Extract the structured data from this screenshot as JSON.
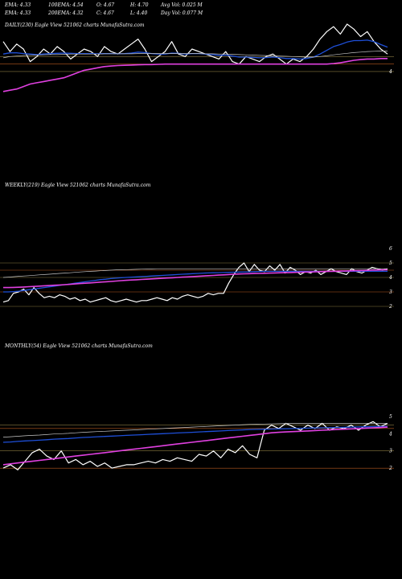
{
  "header": {
    "row1": [
      "EMA: 4.33",
      "100EMA: 4.54",
      "O: 4.67",
      "H: 4.70",
      "Avg Vol: 0.025 M"
    ],
    "row2": [
      "EMA: 4.33",
      "200EMA: 4.32",
      "C: 4.67",
      "L: 4.40",
      "Day Vol: 0.077 M"
    ]
  },
  "colors": {
    "background": "#000000",
    "price": "#ffffff",
    "ema_blue": "#1e4fd8",
    "ema_pink": "#e040e0",
    "ema_grey": "#c8c8c8",
    "ema_olive": "#8a7a40",
    "ref_line": "#b85a20"
  },
  "chart_data": [
    {
      "type": "line",
      "title": "DAILY(230) Eagle  View  521062  charts MunafaSutra.com",
      "y_ticks": [
        "4"
      ],
      "series": [
        {
          "values": [
            5.2,
            4.8,
            5.1,
            4.9,
            4.4,
            4.6,
            4.9,
            4.7,
            5.0,
            4.8,
            4.5,
            4.7,
            4.9,
            4.8,
            4.6,
            5.0,
            4.8,
            4.7,
            4.9,
            5.1,
            5.3,
            4.9,
            4.4,
            4.6,
            4.8,
            5.2,
            4.7,
            4.6,
            4.9,
            4.8,
            4.7,
            4.6,
            4.5,
            4.8,
            4.4,
            4.3,
            4.6,
            4.5,
            4.4,
            4.6,
            4.7,
            4.5,
            4.3,
            4.5,
            4.4,
            4.6,
            4.9,
            5.3,
            5.6,
            5.8,
            5.5,
            5.9,
            5.7,
            5.4,
            5.6,
            5.2,
            4.9,
            4.7
          ]
        },
        {
          "values": [
            4.7,
            4.75,
            4.75,
            4.72,
            4.7,
            4.68,
            4.7,
            4.72,
            4.73,
            4.74,
            4.73,
            4.72,
            4.72,
            4.72,
            4.71,
            4.72,
            4.72,
            4.71,
            4.72,
            4.74,
            4.78,
            4.76,
            4.72,
            4.7,
            4.7,
            4.74,
            4.73,
            4.7,
            4.72,
            4.72,
            4.7,
            4.68,
            4.65,
            4.66,
            4.62,
            4.58,
            4.58,
            4.57,
            4.55,
            4.56,
            4.58,
            4.56,
            4.52,
            4.52,
            4.5,
            4.52,
            4.58,
            4.7,
            4.85,
            5.0,
            5.08,
            5.18,
            5.24,
            5.24,
            5.26,
            5.2,
            5.08,
            4.98
          ]
        },
        {
          "values": [
            3.2,
            3.25,
            3.3,
            3.4,
            3.5,
            3.55,
            3.6,
            3.65,
            3.7,
            3.75,
            3.85,
            3.95,
            4.05,
            4.1,
            4.15,
            4.2,
            4.22,
            4.24,
            4.25,
            4.26,
            4.27,
            4.28,
            4.28,
            4.29,
            4.3,
            4.3,
            4.3,
            4.3,
            4.3,
            4.3,
            4.3,
            4.3,
            4.3,
            4.3,
            4.3,
            4.3,
            4.3,
            4.3,
            4.3,
            4.3,
            4.3,
            4.3,
            4.3,
            4.3,
            4.3,
            4.3,
            4.3,
            4.3,
            4.3,
            4.32,
            4.35,
            4.4,
            4.45,
            4.48,
            4.5,
            4.5,
            4.52,
            4.52
          ]
        },
        {
          "values": [
            4.55,
            4.6,
            4.62,
            4.64,
            4.65,
            4.66,
            4.67,
            4.68,
            4.68,
            4.69,
            4.7,
            4.7,
            4.7,
            4.7,
            4.7,
            4.71,
            4.71,
            4.71,
            4.71,
            4.71,
            4.72,
            4.72,
            4.72,
            4.72,
            4.72,
            4.72,
            4.72,
            4.72,
            4.72,
            4.72,
            4.71,
            4.71,
            4.7,
            4.7,
            4.69,
            4.68,
            4.67,
            4.66,
            4.65,
            4.64,
            4.63,
            4.62,
            4.61,
            4.6,
            4.59,
            4.58,
            4.58,
            4.6,
            4.63,
            4.67,
            4.7,
            4.73,
            4.76,
            4.78,
            4.8,
            4.81,
            4.82,
            4.82
          ]
        }
      ]
    },
    {
      "type": "line",
      "title": "WEEKLY(219) Eagle  View  521062  charts MunafaSutra.com",
      "y_ticks": [
        "6",
        "5",
        "4",
        "3",
        "2"
      ],
      "ylim": [
        1.5,
        6.5
      ],
      "series": [
        {
          "values": [
            2.3,
            2.4,
            2.9,
            3.0,
            3.2,
            2.8,
            3.3,
            2.9,
            2.6,
            2.7,
            2.6,
            2.8,
            2.7,
            2.5,
            2.6,
            2.4,
            2.5,
            2.3,
            2.4,
            2.5,
            2.6,
            2.4,
            2.3,
            2.4,
            2.5,
            2.4,
            2.3,
            2.4,
            2.4,
            2.5,
            2.6,
            2.5,
            2.4,
            2.6,
            2.5,
            2.7,
            2.8,
            2.7,
            2.6,
            2.7,
            2.9,
            2.8,
            2.9,
            2.9,
            3.6,
            4.2,
            4.7,
            5.0,
            4.4,
            4.9,
            4.5,
            4.4,
            4.8,
            4.5,
            4.9,
            4.3,
            4.7,
            4.5,
            4.2,
            4.4,
            4.3,
            4.5,
            4.2,
            4.4,
            4.6,
            4.4,
            4.3,
            4.2,
            4.6,
            4.4,
            4.3,
            4.5,
            4.7,
            4.6,
            4.5,
            4.6
          ]
        },
        {
          "values": [
            3.0,
            3.0,
            3.02,
            3.05,
            3.1,
            3.15,
            3.2,
            3.25,
            3.3,
            3.35,
            3.4,
            3.45,
            3.5,
            3.55,
            3.6,
            3.65,
            3.7,
            3.75,
            3.8,
            3.85,
            3.88,
            3.92,
            3.95,
            3.98,
            4.0,
            4.02,
            4.04,
            4.06,
            4.08,
            4.1,
            4.12,
            4.14,
            4.16,
            4.18,
            4.2,
            4.22,
            4.24,
            4.26,
            4.28,
            4.3,
            4.31,
            4.32,
            4.33,
            4.34,
            4.35,
            4.36,
            4.37,
            4.38,
            4.39,
            4.4,
            4.41,
            4.42,
            4.42,
            4.42,
            4.42,
            4.42,
            4.42,
            4.42,
            4.42,
            4.42,
            4.42,
            4.42,
            4.42,
            4.42,
            4.42,
            4.42,
            4.42,
            4.42,
            4.42,
            4.42,
            4.42,
            4.42,
            4.42,
            4.42,
            4.42,
            4.42
          ]
        },
        {
          "values": [
            3.3,
            3.3,
            3.31,
            3.32,
            3.34,
            3.36,
            3.38,
            3.4,
            3.42,
            3.44,
            3.46,
            3.48,
            3.5,
            3.52,
            3.55,
            3.58,
            3.6,
            3.62,
            3.65,
            3.68,
            3.7,
            3.72,
            3.75,
            3.78,
            3.8,
            3.82,
            3.84,
            3.86,
            3.88,
            3.9,
            3.92,
            3.94,
            3.96,
            3.98,
            4.0,
            4.02,
            4.04,
            4.06,
            4.08,
            4.1,
            4.12,
            4.14,
            4.16,
            4.18,
            4.2,
            4.22,
            4.24,
            4.25,
            4.26,
            4.27,
            4.28,
            4.29,
            4.3,
            4.31,
            4.32,
            4.33,
            4.34,
            4.35,
            4.36,
            4.37,
            4.38,
            4.39,
            4.4,
            4.41,
            4.42,
            4.43,
            4.44,
            4.45,
            4.46,
            4.47,
            4.48,
            4.49,
            4.5,
            4.51,
            4.52,
            4.53
          ]
        },
        {
          "values": [
            4.0,
            4.02,
            4.05,
            4.08,
            4.1,
            4.12,
            4.15,
            4.18,
            4.2,
            4.22,
            4.25,
            4.28,
            4.3,
            4.32,
            4.35,
            4.38,
            4.4,
            4.42,
            4.44,
            4.46,
            4.48,
            4.5,
            4.52,
            4.53,
            4.54,
            4.55,
            4.56,
            4.57,
            4.58,
            4.59,
            4.6,
            4.6,
            4.6,
            4.6,
            4.6,
            4.6,
            4.6,
            4.6,
            4.6,
            4.6,
            4.6,
            4.6,
            4.6,
            4.6,
            4.6,
            4.6,
            4.6,
            4.6,
            4.6,
            4.6,
            4.6,
            4.6,
            4.6,
            4.6,
            4.6,
            4.6,
            4.6,
            4.6,
            4.6,
            4.6,
            4.6,
            4.6,
            4.6,
            4.6,
            4.6,
            4.6,
            4.6,
            4.6,
            4.6,
            4.6,
            4.6,
            4.6,
            4.6,
            4.6,
            4.6,
            4.6
          ]
        }
      ]
    },
    {
      "type": "line",
      "title": "MONTHLY(54) Eagle  View  521062  charts MunafaSutra.com",
      "y_ticks": [
        "5",
        "4",
        "3",
        "2"
      ],
      "ylim": [
        1.4,
        5.6
      ],
      "series": [
        {
          "values": [
            2.0,
            2.2,
            1.9,
            2.4,
            2.9,
            3.1,
            2.7,
            2.5,
            3.0,
            2.3,
            2.5,
            2.2,
            2.4,
            2.1,
            2.3,
            2.0,
            2.1,
            2.2,
            2.2,
            2.3,
            2.4,
            2.3,
            2.5,
            2.4,
            2.6,
            2.5,
            2.4,
            2.8,
            2.7,
            3.0,
            2.6,
            3.1,
            2.9,
            3.3,
            2.8,
            2.6,
            4.2,
            4.5,
            4.3,
            4.6,
            4.4,
            4.2,
            4.5,
            4.3,
            4.6,
            4.2,
            4.4,
            4.3,
            4.5,
            4.2,
            4.5,
            4.7,
            4.4,
            4.6
          ]
        },
        {
          "values": [
            3.5,
            3.52,
            3.55,
            3.58,
            3.6,
            3.62,
            3.65,
            3.68,
            3.7,
            3.72,
            3.75,
            3.78,
            3.8,
            3.82,
            3.84,
            3.86,
            3.88,
            3.9,
            3.92,
            3.94,
            3.96,
            3.98,
            4.0,
            4.02,
            4.04,
            4.06,
            4.08,
            4.1,
            4.12,
            4.14,
            4.16,
            4.18,
            4.2,
            4.22,
            4.24,
            4.25,
            4.26,
            4.27,
            4.28,
            4.29,
            4.3,
            4.31,
            4.32,
            4.33,
            4.34,
            4.35,
            4.36,
            4.37,
            4.38,
            4.39,
            4.4,
            4.41,
            4.42,
            4.42
          ]
        },
        {
          "values": [
            2.2,
            2.25,
            2.3,
            2.35,
            2.4,
            2.45,
            2.5,
            2.55,
            2.6,
            2.65,
            2.7,
            2.75,
            2.8,
            2.85,
            2.9,
            2.95,
            3.0,
            3.05,
            3.1,
            3.15,
            3.2,
            3.25,
            3.3,
            3.35,
            3.4,
            3.45,
            3.5,
            3.55,
            3.6,
            3.65,
            3.7,
            3.75,
            3.8,
            3.85,
            3.9,
            3.95,
            4.0,
            4.05,
            4.08,
            4.1,
            4.12,
            4.14,
            4.16,
            4.18,
            4.2,
            4.22,
            4.24,
            4.26,
            4.28,
            4.3,
            4.32,
            4.34,
            4.36,
            4.38
          ]
        },
        {
          "values": [
            3.8,
            3.82,
            3.85,
            3.88,
            3.9,
            3.92,
            3.95,
            3.98,
            4.0,
            4.02,
            4.05,
            4.08,
            4.1,
            4.12,
            4.14,
            4.16,
            4.18,
            4.2,
            4.22,
            4.24,
            4.26,
            4.28,
            4.3,
            4.32,
            4.34,
            4.36,
            4.38,
            4.4,
            4.42,
            4.44,
            4.46,
            4.48,
            4.5,
            4.52,
            4.54,
            4.55,
            4.56,
            4.57,
            4.58,
            4.59,
            4.6,
            4.6,
            4.6,
            4.6,
            4.6,
            4.6,
            4.6,
            4.6,
            4.6,
            4.6,
            4.6,
            4.6,
            4.6,
            4.6
          ]
        }
      ]
    }
  ]
}
